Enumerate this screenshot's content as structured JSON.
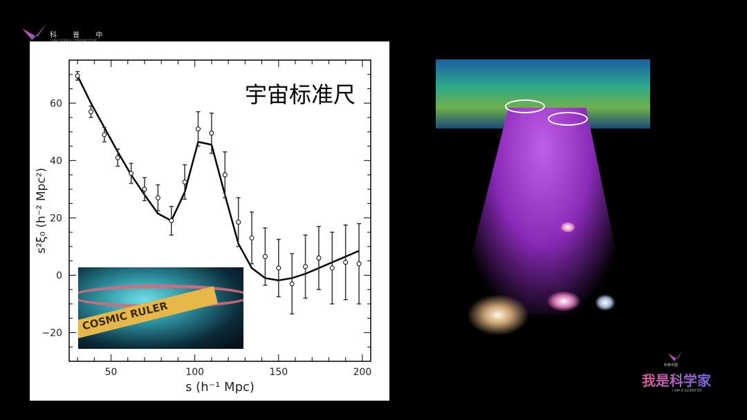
{
  "logos": {
    "top_left": {
      "text": "科 普 中 国",
      "subtitle": "CHINA SCIENCE COMMUNICATION"
    },
    "bottom_right": {
      "small": "科普中国",
      "title": "我是科学家",
      "subtitle": "I AM A SCIENTIST"
    }
  },
  "inset_image": {
    "text": "COSMIC RULER"
  },
  "chart_data": {
    "type": "line",
    "title": "宇宙标准尺",
    "xlabel": "s (h⁻¹ Mpc)",
    "ylabel": "s²ξ₀ (h⁻² Mpc²)",
    "xlim": [
      25,
      205
    ],
    "ylim": [
      -30,
      75
    ],
    "xticks": [
      50,
      100,
      150,
      200
    ],
    "yticks": [
      -20,
      0,
      20,
      40,
      60
    ],
    "grid": false,
    "series": [
      {
        "kind": "points-with-errorbars",
        "x": [
          30,
          38,
          46,
          54,
          62,
          70,
          78,
          86,
          94,
          102,
          110,
          118,
          126,
          134,
          142,
          150,
          158,
          166,
          174,
          182,
          190,
          198
        ],
        "y": [
          69.5,
          57,
          49,
          41,
          35.5,
          30,
          27,
          19,
          32.5,
          51,
          49.5,
          35,
          18.5,
          13,
          6.5,
          2.5,
          -3,
          3,
          6,
          2.5,
          4.5,
          4
        ],
        "err": [
          1.5,
          2,
          2.5,
          3,
          3.5,
          4,
          4.5,
          5,
          6,
          6,
          7,
          8,
          8.5,
          9,
          10,
          10,
          10.5,
          11,
          11,
          12.5,
          13,
          14
        ]
      },
      {
        "kind": "model-line",
        "x": [
          30,
          38,
          46,
          54,
          62,
          70,
          78,
          86,
          94,
          102,
          110,
          118,
          126,
          134,
          142,
          150,
          158,
          166,
          174,
          182,
          190,
          198
        ],
        "y": [
          69.5,
          60,
          51.5,
          43,
          35,
          28,
          21.5,
          19,
          29,
          46.5,
          45.5,
          28,
          11,
          2.5,
          -1,
          -1.8,
          -1,
          0.5,
          2.5,
          4.5,
          6.5,
          8.5
        ]
      }
    ]
  }
}
